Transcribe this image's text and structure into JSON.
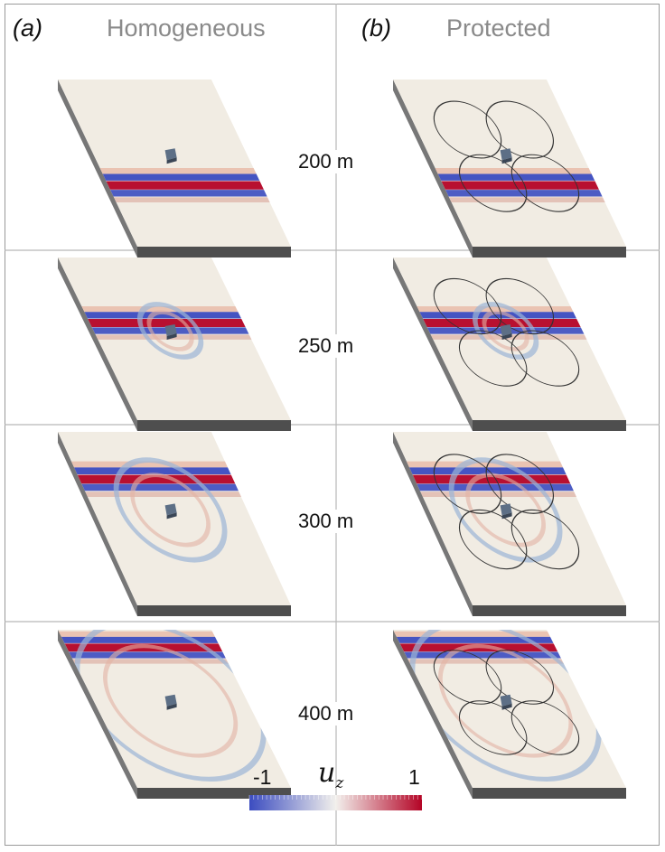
{
  "panels": {
    "left": {
      "label": "(a)",
      "title": "Homogeneous"
    },
    "right": {
      "label": "(b)",
      "title": "Protected"
    }
  },
  "rows": [
    {
      "distance_label": "200 m",
      "wave_position": 0.58,
      "ring_radius": 0.0
    },
    {
      "distance_label": "250 m",
      "wave_position": 0.35,
      "ring_radius": 0.18
    },
    {
      "distance_label": "300 m",
      "wave_position": 0.22,
      "ring_radius": 0.32
    },
    {
      "distance_label": "400 m",
      "wave_position": 0.06,
      "ring_radius": 0.55
    }
  ],
  "colorbar": {
    "variable": "u",
    "subscript": "z",
    "min_label": "-1",
    "max_label": "1",
    "colors": {
      "low": "#3b4cc0",
      "mid": "#f2f0ec",
      "high": "#b40426"
    }
  },
  "colors": {
    "base_face": "#f1ece3",
    "slab_side": "#777777",
    "slab_front": "#4e4e4e",
    "rings": "#333333",
    "grid": "#b8b8b8"
  }
}
